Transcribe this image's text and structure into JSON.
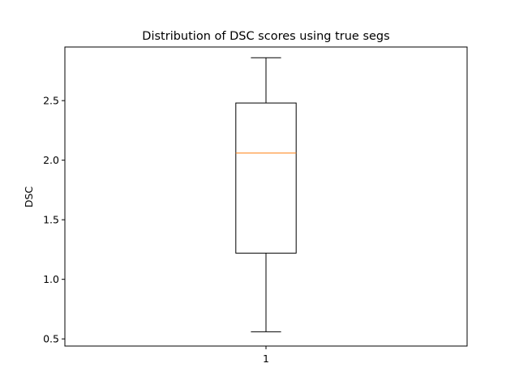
{
  "chart_data": {
    "type": "box",
    "title": "Distribution of DSC scores using true segs",
    "xlabel": "",
    "ylabel": "DSC",
    "categories": [
      "1"
    ],
    "ylim": [
      0.44,
      2.95
    ],
    "yticks": [
      0.5,
      1.0,
      1.5,
      2.0,
      2.5
    ],
    "ytick_labels": [
      "0.5",
      "1.0",
      "1.5",
      "2.0",
      "2.5"
    ],
    "boxes": [
      {
        "label": "1",
        "whisker_low": 0.56,
        "q1": 1.22,
        "median": 2.06,
        "q3": 2.48,
        "whisker_high": 2.86
      }
    ],
    "grid": false,
    "colors": {
      "box": "#000000",
      "median": "#ff7f0e",
      "axes": "#000000"
    }
  }
}
